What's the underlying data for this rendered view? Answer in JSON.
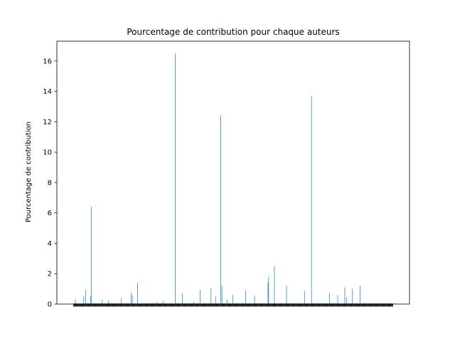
{
  "chart_data": {
    "type": "bar",
    "title": "Pourcentage de contribution pour chaque auteurs",
    "xlabel": "",
    "ylabel": "Pourcentage de contribution",
    "ylim": [
      0,
      17.3
    ],
    "yticks": [
      0,
      2,
      4,
      6,
      8,
      10,
      12,
      14,
      16
    ],
    "grid": false,
    "legend": "none",
    "bar_color": "#1f77b4",
    "category_count": 500,
    "peaks": [
      {
        "index": 3,
        "value": 0.3
      },
      {
        "index": 16,
        "value": 0.5
      },
      {
        "index": 19,
        "value": 0.95
      },
      {
        "index": 27,
        "value": 0.55
      },
      {
        "index": 28,
        "value": 6.4
      },
      {
        "index": 45,
        "value": 0.3
      },
      {
        "index": 55,
        "value": 0.25
      },
      {
        "index": 75,
        "value": 0.4
      },
      {
        "index": 90,
        "value": 0.75
      },
      {
        "index": 92,
        "value": 0.55
      },
      {
        "index": 100,
        "value": 1.4
      },
      {
        "index": 130,
        "value": 0.15
      },
      {
        "index": 140,
        "value": 0.2
      },
      {
        "index": 159,
        "value": 16.5
      },
      {
        "index": 170,
        "value": 0.7
      },
      {
        "index": 188,
        "value": 0.15
      },
      {
        "index": 198,
        "value": 0.95
      },
      {
        "index": 215,
        "value": 1.05
      },
      {
        "index": 222,
        "value": 0.5
      },
      {
        "index": 230,
        "value": 12.4
      },
      {
        "index": 232,
        "value": 1.2
      },
      {
        "index": 240,
        "value": 0.3
      },
      {
        "index": 249,
        "value": 0.6
      },
      {
        "index": 269,
        "value": 0.9
      },
      {
        "index": 283,
        "value": 0.55
      },
      {
        "index": 304,
        "value": 1.4
      },
      {
        "index": 305,
        "value": 1.8
      },
      {
        "index": 314,
        "value": 2.5
      },
      {
        "index": 333,
        "value": 1.2
      },
      {
        "index": 361,
        "value": 0.85
      },
      {
        "index": 372,
        "value": 13.7
      },
      {
        "index": 400,
        "value": 0.75
      },
      {
        "index": 413,
        "value": 0.6
      },
      {
        "index": 424,
        "value": 1.1
      },
      {
        "index": 427,
        "value": 0.45
      },
      {
        "index": 436,
        "value": 1.0
      },
      {
        "index": 448,
        "value": 1.2
      }
    ],
    "background_level": 0.05
  }
}
